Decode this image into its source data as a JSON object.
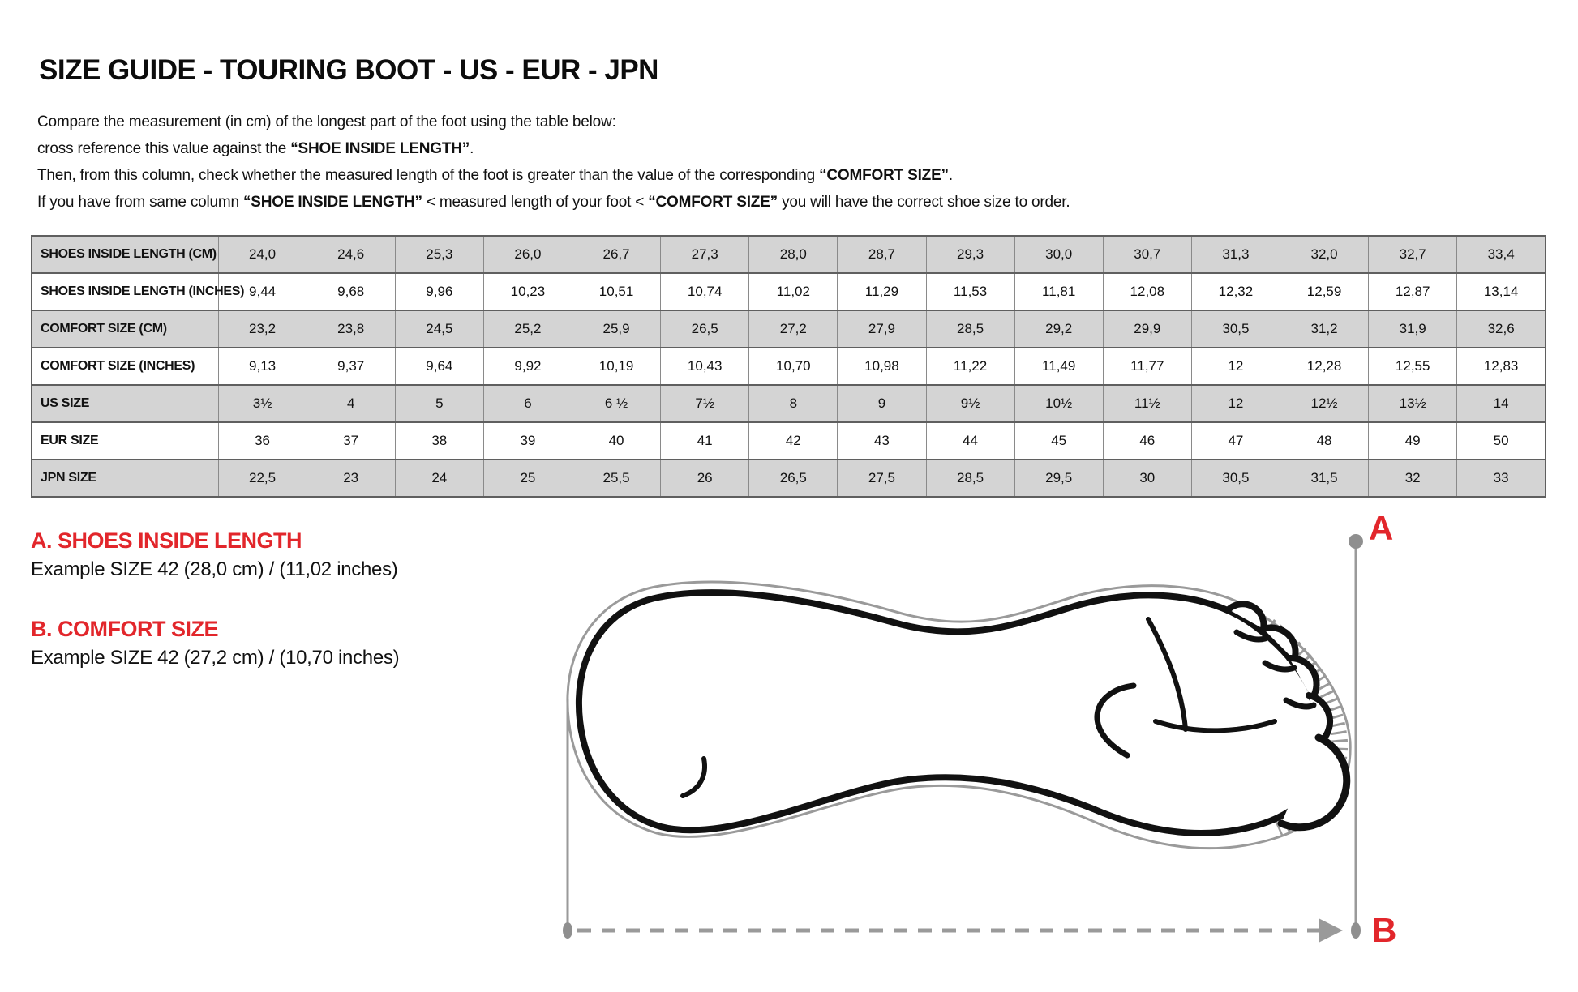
{
  "title": {
    "regular": "SIZE GUIDE ",
    "bold": "- TOURING BOOT - US - EUR - JPN"
  },
  "intro": {
    "lines": [
      [
        {
          "t": "Compare the measurement (in cm) of the longest part of the foot using the table below:",
          "b": false
        }
      ],
      [
        {
          "t": "cross reference this value against the ",
          "b": false
        },
        {
          "t": "“SHOE INSIDE LENGTH”",
          "b": true
        },
        {
          "t": ".",
          "b": false
        }
      ],
      [
        {
          "t": "Then, from this column, check whether the measured length of the foot is greater than the value of the corresponding ",
          "b": false
        },
        {
          "t": "“COMFORT SIZE”",
          "b": true
        },
        {
          "t": ".",
          "b": false
        }
      ],
      [
        {
          "t": "If you have from same column ",
          "b": false
        },
        {
          "t": "“SHOE INSIDE LENGTH”",
          "b": true
        },
        {
          "t": " <  measured length of your foot  < ",
          "b": false
        },
        {
          "t": "“COMFORT SIZE”",
          "b": true
        },
        {
          "t": " you will have the correct shoe size to order.",
          "b": false
        }
      ]
    ]
  },
  "table": {
    "rows": [
      {
        "label": "SHOES INSIDE LENGTH (CM)",
        "shaded": true,
        "values": [
          "24,0",
          "24,6",
          "25,3",
          "26,0",
          "26,7",
          "27,3",
          "28,0",
          "28,7",
          "29,3",
          "30,0",
          "30,7",
          "31,3",
          "32,0",
          "32,7",
          "33,4"
        ]
      },
      {
        "label": "SHOES INSIDE LENGTH (INCHES)",
        "shaded": false,
        "values": [
          "9,44",
          "9,68",
          "9,96",
          "10,23",
          "10,51",
          "10,74",
          "11,02",
          "11,29",
          "11,53",
          "11,81",
          "12,08",
          "12,32",
          "12,59",
          "12,87",
          "13,14"
        ]
      },
      {
        "label": "COMFORT SIZE (CM)",
        "shaded": true,
        "values": [
          "23,2",
          "23,8",
          "24,5",
          "25,2",
          "25,9",
          "26,5",
          "27,2",
          "27,9",
          "28,5",
          "29,2",
          "29,9",
          "30,5",
          "31,2",
          "31,9",
          "32,6"
        ]
      },
      {
        "label": "COMFORT SIZE (INCHES)",
        "shaded": false,
        "values": [
          "9,13",
          "9,37",
          "9,64",
          "9,92",
          "10,19",
          "10,43",
          "10,70",
          "10,98",
          "11,22",
          "11,49",
          "11,77",
          "12",
          "12,28",
          "12,55",
          "12,83"
        ]
      },
      {
        "label": "US SIZE",
        "shaded": true,
        "values": [
          "3½",
          "4",
          "5",
          "6",
          "6 ½",
          "7½",
          "8",
          "9",
          "9½",
          "10½",
          "11½",
          "12",
          "12½",
          "13½",
          "14"
        ]
      },
      {
        "label": "EUR SIZE",
        "shaded": false,
        "values": [
          "36",
          "37",
          "38",
          "39",
          "40",
          "41",
          "42",
          "43",
          "44",
          "45",
          "46",
          "47",
          "48",
          "49",
          "50"
        ]
      },
      {
        "label": "JPN SIZE",
        "shaded": true,
        "values": [
          "22,5",
          "23",
          "24",
          "25",
          "25,5",
          "26",
          "26,5",
          "27,5",
          "28,5",
          "29,5",
          "30",
          "30,5",
          "31,5",
          "32",
          "33"
        ]
      }
    ]
  },
  "legend": {
    "a_heading": "A. SHOES INSIDE LENGTH",
    "a_example": "Example SIZE 42 (28,0 cm) / (11,02 inches)",
    "b_heading": "B. COMFORT SIZE",
    "b_example": "Example SIZE 42 (27,2 cm) / (10,70 inches)"
  },
  "diagram": {
    "label_a": "A",
    "label_b": "B"
  },
  "colors": {
    "accent_red": "#e2262b",
    "row_shade": "#d4d4d4",
    "table_border": "#5f5f5f",
    "measure_line_gray": "#9a9a9a"
  }
}
